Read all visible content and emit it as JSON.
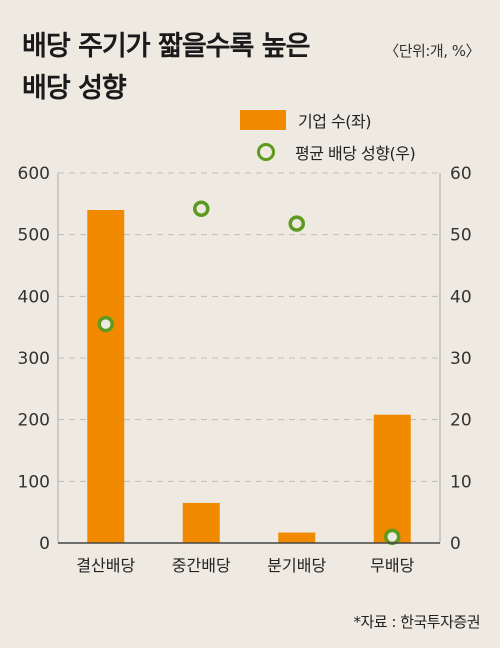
{
  "header": {
    "title_line1": "배당 주기가 짧을수록 높은",
    "title_line2": "배당 성향",
    "unit": "〈단위:개, %〉"
  },
  "legend": {
    "bar_label": "기업 수(좌)",
    "dot_label": "평균 배당 성향(우)"
  },
  "source": "*자료 : 한국투자증권",
  "colors": {
    "background": "#eeeae1",
    "bar": "#f28a00",
    "dot_stroke": "#5d9a1f",
    "grid": "#bdbdbd"
  },
  "chart_data": {
    "type": "bar",
    "categories": [
      "결산배당",
      "중간배당",
      "분기배당",
      "무배당"
    ],
    "series": [
      {
        "name": "기업 수(좌)",
        "type": "bar",
        "axis": "left",
        "values": [
          540,
          65,
          17,
          208
        ]
      },
      {
        "name": "평균 배당 성향(우)",
        "type": "scatter",
        "axis": "right",
        "values": [
          35.5,
          54.2,
          51.8,
          1.0
        ]
      }
    ],
    "y_left": {
      "min": 0,
      "max": 600,
      "ticks": [
        0,
        100,
        200,
        300,
        400,
        500,
        600
      ]
    },
    "y_right": {
      "min": 0,
      "max": 60,
      "ticks": [
        0,
        10,
        20,
        30,
        40,
        50,
        60
      ]
    },
    "grid": true,
    "legend_position": "top-right"
  }
}
